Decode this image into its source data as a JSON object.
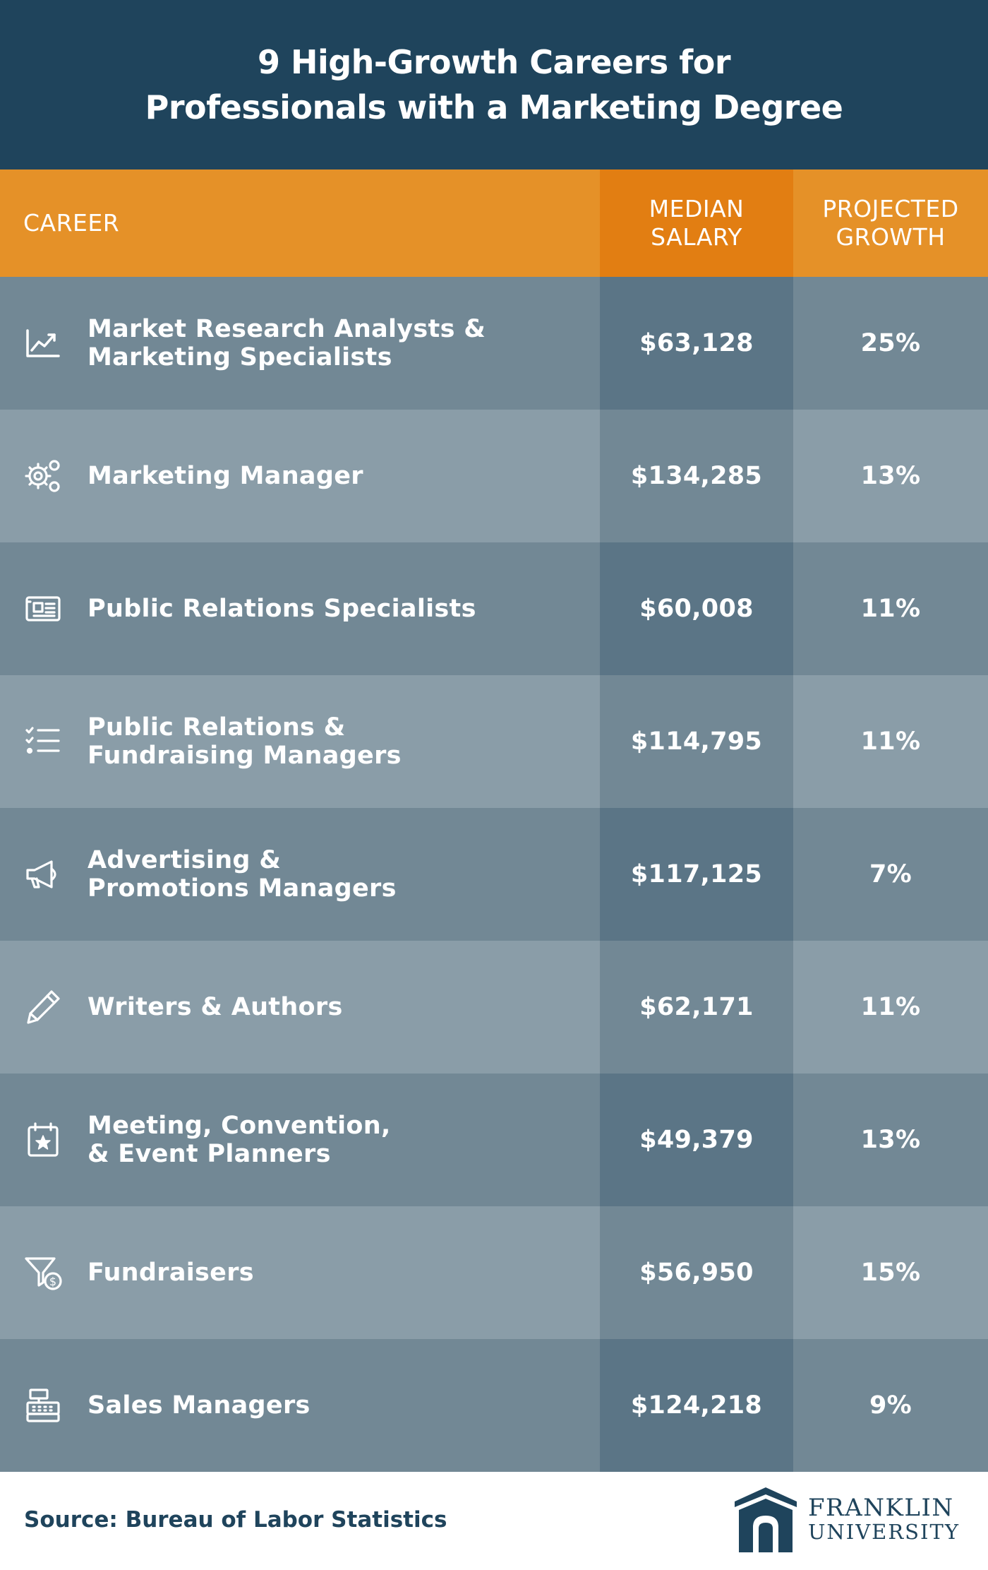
{
  "header": {
    "title_line1": "9 High-Growth Careers for",
    "title_line2": "Professionals with a Marketing Degree"
  },
  "table": {
    "columns": {
      "career": "CAREER",
      "salary_line1": "MEDIAN",
      "salary_line2": "SALARY",
      "growth_line1": "PROJECTED",
      "growth_line2": "GROWTH"
    },
    "rows": [
      {
        "icon": "trending-chart-icon",
        "career": "Market Research Analysts &\nMarketing Specialists",
        "salary": "$63,128",
        "growth": "25%"
      },
      {
        "icon": "gears-icon",
        "career": "Marketing Manager",
        "salary": "$134,285",
        "growth": "13%"
      },
      {
        "icon": "newspaper-icon",
        "career": "Public Relations Specialists",
        "salary": "$60,008",
        "growth": "11%"
      },
      {
        "icon": "checklist-icon",
        "career": "Public Relations &\nFundraising Managers",
        "salary": "$114,795",
        "growth": "11%"
      },
      {
        "icon": "megaphone-icon",
        "career": "Advertising &\nPromotions Managers",
        "salary": "$117,125",
        "growth": "7%"
      },
      {
        "icon": "pencil-icon",
        "career": "Writers & Authors",
        "salary": "$62,171",
        "growth": "11%"
      },
      {
        "icon": "calendar-star-icon",
        "career": "Meeting, Convention,\n& Event Planners",
        "salary": "$49,379",
        "growth": "13%"
      },
      {
        "icon": "funnel-dollar-icon",
        "career": "Fundraisers",
        "salary": "$56,950",
        "growth": "15%"
      },
      {
        "icon": "cash-register-icon",
        "career": "Sales Managers",
        "salary": "$124,218",
        "growth": "9%"
      }
    ]
  },
  "footer": {
    "source": "Source: Bureau of Labor Statistics",
    "logo_line1": "FRANKLIN",
    "logo_line2": "UNIVERSITY"
  },
  "colors": {
    "title_band": "#1f445c",
    "header_orange": "#e59128",
    "header_orange_dark": "#e27e12",
    "row_dark": "#728895",
    "row_light": "#8a9da8",
    "salary_dark": "#5b7586"
  }
}
